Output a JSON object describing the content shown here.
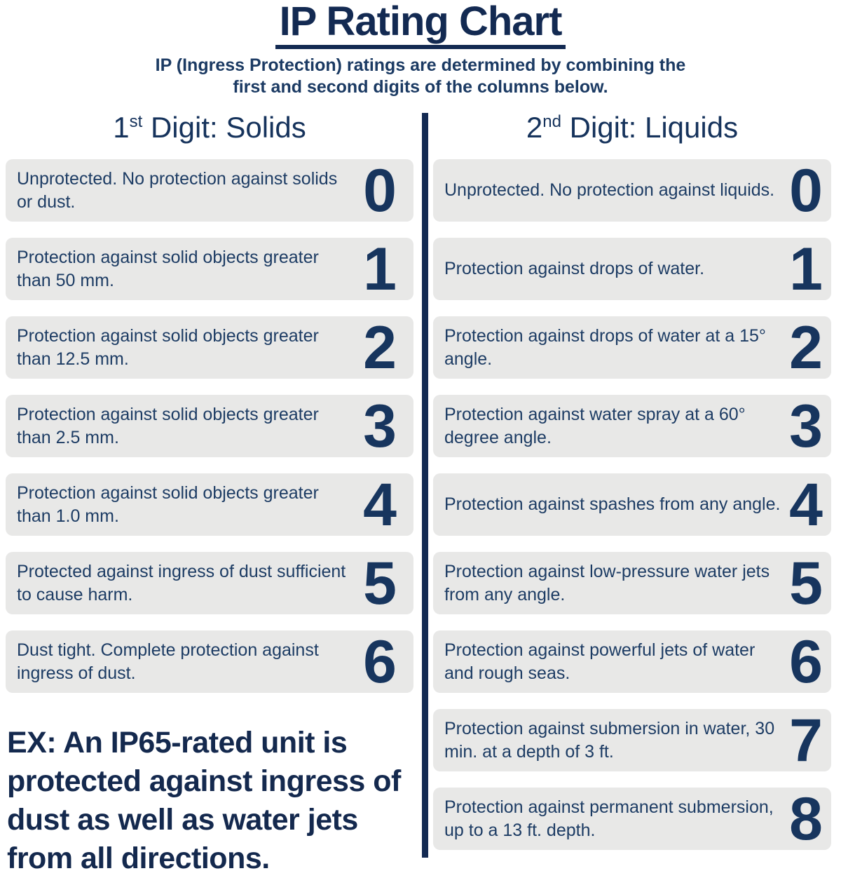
{
  "title": "IP Rating Chart",
  "subtitle": "IP (Ingress Protection) ratings are determined by combining the first and second digits of the columns below.",
  "colors": {
    "navy_text": "#17355e",
    "title_navy": "#132a52",
    "card_background": "#e8e8e7",
    "page_background": "#ffffff"
  },
  "columns": [
    {
      "heading_number": "1",
      "heading_ordinal": "st",
      "heading_rest": " Digit: Solids",
      "rows": [
        {
          "digit": "0",
          "description": "Unprotected. No protection against solids or dust."
        },
        {
          "digit": "1",
          "description": "Protection against solid objects greater than 50 mm."
        },
        {
          "digit": "2",
          "description": "Protection against solid objects greater than 12.5 mm."
        },
        {
          "digit": "3",
          "description": "Protection against solid objects greater than 2.5 mm."
        },
        {
          "digit": "4",
          "description": "Protection against solid objects greater than 1.0 mm."
        },
        {
          "digit": "5",
          "description": "Protected against ingress of dust sufficient to cause harm."
        },
        {
          "digit": "6",
          "description": "Dust tight. Complete protection against ingress of dust."
        }
      ],
      "note": "EX: An IP65-rated unit is protected against ingress of dust as well as water jets from all directions."
    },
    {
      "heading_number": "2",
      "heading_ordinal": "nd",
      "heading_rest": " Digit: Liquids",
      "rows": [
        {
          "digit": "0",
          "description": "Unprotected. No protection against liquids."
        },
        {
          "digit": "1",
          "description": "Protection against drops of water."
        },
        {
          "digit": "2",
          "description": "Protection against drops of water at a 15° angle."
        },
        {
          "digit": "3",
          "description": "Protection against water spray at a 60° degree angle."
        },
        {
          "digit": "4",
          "description": "Protection against spashes from any angle."
        },
        {
          "digit": "5",
          "description": "Protection against low-pressure water jets from any angle."
        },
        {
          "digit": "6",
          "description": "Protection against powerful jets of water and rough seas."
        },
        {
          "digit": "7",
          "description": "Protection against submersion in water, 30 min. at a depth of 3 ft."
        },
        {
          "digit": "8",
          "description": "Protection against permanent submersion, up to a 13 ft. depth."
        }
      ]
    }
  ]
}
